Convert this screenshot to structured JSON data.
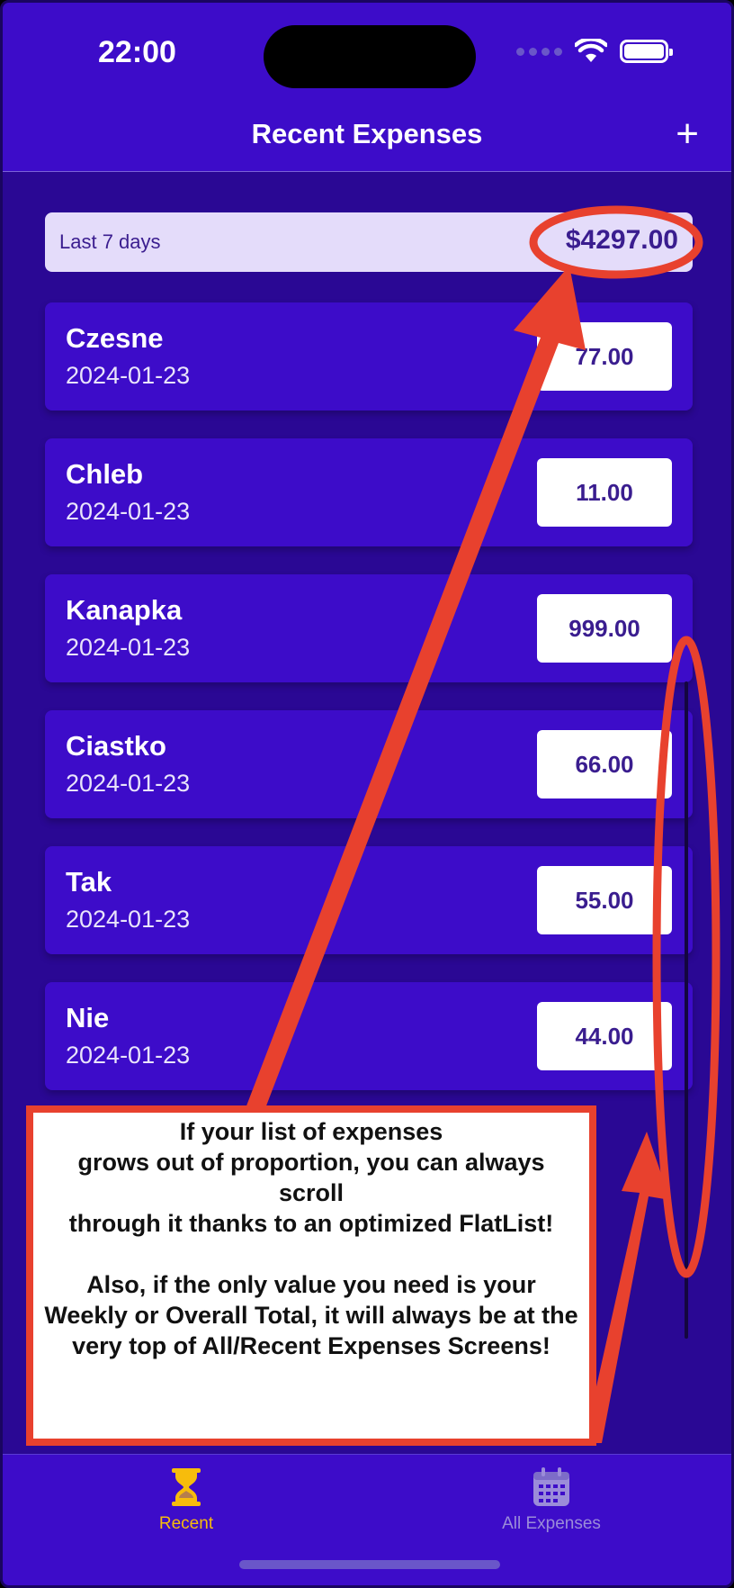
{
  "status_bar": {
    "time": "22:00"
  },
  "header": {
    "title": "Recent Expenses",
    "add_label": "+"
  },
  "summary": {
    "period": "Last 7 days",
    "sum": "$4297.00"
  },
  "expenses": [
    {
      "description": "Czesne",
      "date": "2024-01-23",
      "amount": "77.00"
    },
    {
      "description": "Chleb",
      "date": "2024-01-23",
      "amount": "11.00"
    },
    {
      "description": "Kanapka",
      "date": "2024-01-23",
      "amount": "999.00"
    },
    {
      "description": "Ciastko",
      "date": "2024-01-23",
      "amount": "66.00"
    },
    {
      "description": "Tak",
      "date": "2024-01-23",
      "amount": "55.00"
    },
    {
      "description": "Nie",
      "date": "2024-01-23",
      "amount": "44.00"
    }
  ],
  "tabs": [
    {
      "label": "Recent",
      "icon": "hourglass-icon",
      "active": true,
      "color": "#f7bc0c"
    },
    {
      "label": "All Expenses",
      "icon": "calendar-icon",
      "active": false,
      "color": "#9b8cd9"
    }
  ],
  "annotation": {
    "text": "If your list of expenses\ngrows out of proportion, you can always scroll\nthrough it thanks to an optimized FlatList!\n\nAlso, if the only value you need is your Weekly or Overall Total, it will always be at the very top of All/Recent Expenses Screens!",
    "color": "#e8412e"
  },
  "colors": {
    "primary": "#3d0cc9",
    "background": "#2a0894",
    "accent": "#f7bc0c",
    "summary_bg": "#e4dcfa"
  }
}
